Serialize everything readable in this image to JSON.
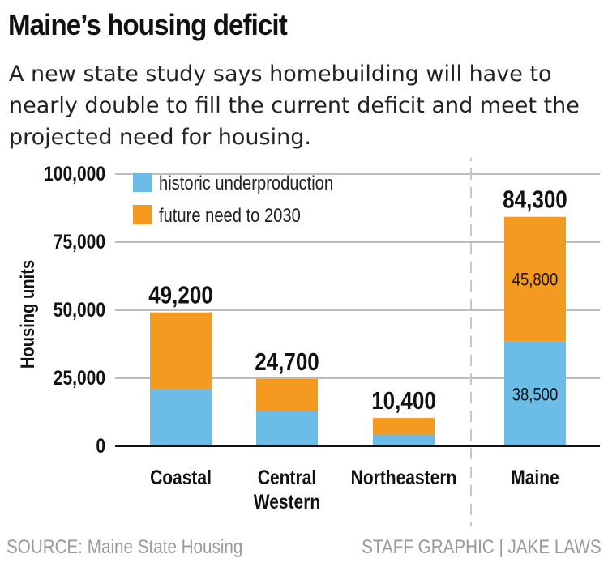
{
  "title": "Maine’s housing deficit",
  "subtitle": "A new state study says homebuilding will have to nearly double to fill the current deficit and meet the projected need for housing.",
  "source": "SOURCE: Maine State Housing",
  "credit": "STAFF GRAPHIC | JAKE LAWS",
  "chart_data": {
    "type": "bar",
    "stacked": true,
    "ylabel": "Housing units",
    "ylim": [
      0,
      100000
    ],
    "yticks": [
      0,
      25000,
      50000,
      75000,
      100000
    ],
    "ytick_labels": [
      "0",
      "25,000",
      "50,000",
      "75,000",
      "100,000"
    ],
    "grid": true,
    "legend_position": "top-left",
    "categories": [
      [
        "Coastal"
      ],
      [
        "Central",
        "Western"
      ],
      [
        "Northeastern"
      ],
      [
        "Maine"
      ]
    ],
    "series": [
      {
        "name": "historic underproduction",
        "color": "#6bbde8",
        "values": [
          21000,
          13000,
          4300,
          38500
        ],
        "labels": [
          "",
          "",
          "",
          "38,500"
        ]
      },
      {
        "name": "future need to 2030",
        "color": "#f59a21",
        "values": [
          28200,
          11700,
          6100,
          45800
        ],
        "labels": [
          "",
          "",
          "",
          "45,800"
        ]
      }
    ],
    "totals": [
      49200,
      24700,
      10400,
      84300
    ],
    "total_labels": [
      "49,200",
      "24,700",
      "10,400",
      "84,300"
    ],
    "separator_before": "Maine"
  }
}
